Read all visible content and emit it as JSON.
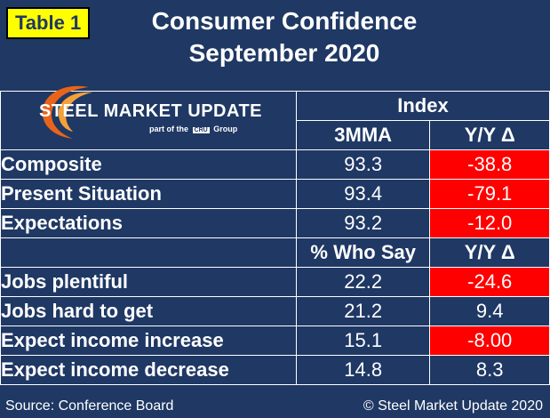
{
  "tag": "Table 1",
  "title": {
    "line1": "Consumer Confidence",
    "line2": "September 2020"
  },
  "logo": {
    "name": "STEEL MARKET UPDATE",
    "sub_pre": "part of the",
    "sub_brand": "CRU",
    "sub_post": "Group"
  },
  "header": {
    "index": "Index",
    "col1": "3MMA",
    "col2": "Y/Y Δ"
  },
  "rows_a": [
    {
      "label": "Composite",
      "value": "93.3",
      "change": "-38.8",
      "neg": true
    },
    {
      "label": "Present Situation",
      "value": "93.4",
      "change": "-79.1",
      "neg": true
    },
    {
      "label": "Expectations",
      "value": "93.2",
      "change": "-12.0",
      "neg": true
    }
  ],
  "subheader": {
    "col1": "% Who Say",
    "col2": "Y/Y Δ"
  },
  "rows_b": [
    {
      "label": "Jobs plentiful",
      "value": "22.2",
      "change": "-24.6",
      "neg": true
    },
    {
      "label": "Jobs hard to get",
      "value": "21.2",
      "change": "9.4",
      "neg": false
    },
    {
      "label": "Expect income increase",
      "value": "15.1",
      "change": "-8.00",
      "neg": true
    },
    {
      "label": "Expect income decrease",
      "value": "14.8",
      "change": "8.3",
      "neg": false
    }
  ],
  "footer": {
    "source": "Source: Conference Board",
    "copyright": "© Steel Market Update 2020"
  },
  "colors": {
    "background": "#1f3864",
    "negative": "#ff0000",
    "tag": "#ffff00"
  }
}
